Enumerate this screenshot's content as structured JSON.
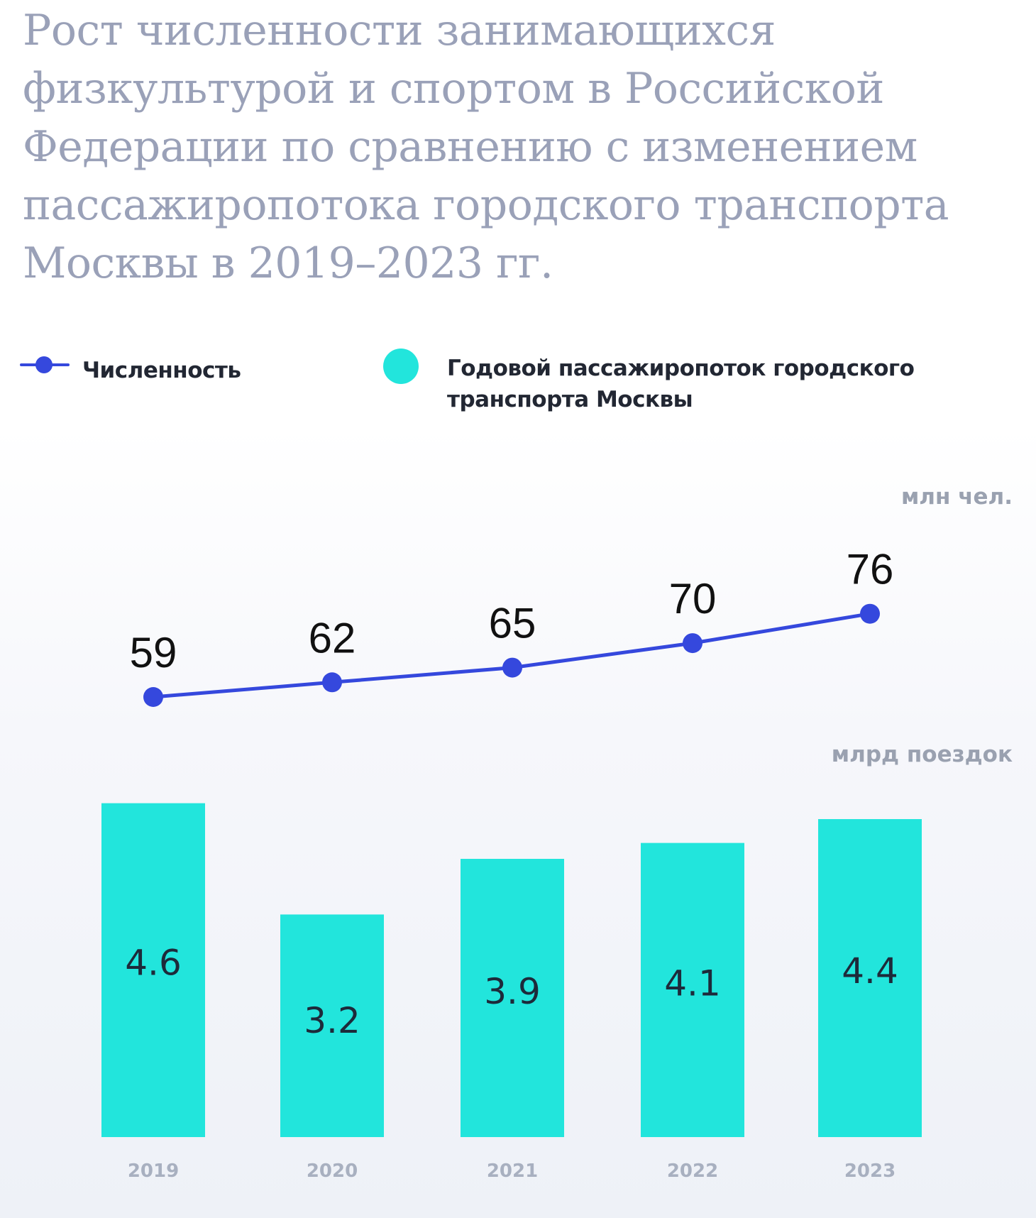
{
  "chart_data": {
    "type": "bar",
    "title": "Рост численности занимающихся физкультурой и спортом в Российской Федерации по сравнению с изменением пассажиропотока городского транспорта Москвы в 2019–2023 гг.",
    "categories": [
      "2019",
      "2020",
      "2021",
      "2022",
      "2023"
    ],
    "legend": {
      "line_label": "Численность",
      "bar_label": "Годовой пассажиропоток городского транспорта Москвы",
      "placement": "top-left"
    },
    "series": [
      {
        "name": "Численность",
        "type": "line",
        "unit": "млн чел.",
        "values": [
          59,
          62,
          65,
          70,
          76
        ],
        "labels": [
          "59",
          "62",
          "65",
          "70",
          "76"
        ],
        "color": "#3548dd"
      },
      {
        "name": "Годовой пассажиропоток городского транспорта Москвы",
        "type": "bar",
        "unit": "млрд поездок",
        "values": [
          4.6,
          3.2,
          3.9,
          4.1,
          4.4
        ],
        "labels": [
          "4.6",
          "3.2",
          "3.9",
          "4.1",
          "4.4"
        ],
        "color": "#22e5dc"
      }
    ],
    "grid": false
  }
}
